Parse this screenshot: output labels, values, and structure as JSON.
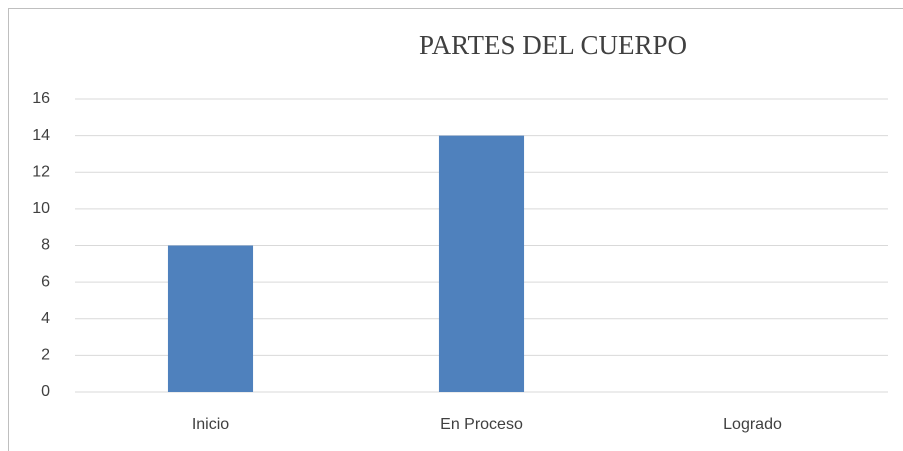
{
  "chart_data": {
    "type": "bar",
    "title": "PARTES DEL CUERPO",
    "categories": [
      "Inicio",
      "En Proceso",
      "Logrado"
    ],
    "values": [
      8,
      14,
      0
    ],
    "color": "#4f81bd",
    "ylim": [
      0,
      16
    ],
    "yticks": [
      0,
      2,
      4,
      6,
      8,
      10,
      12,
      14,
      16
    ],
    "grid": true
  }
}
